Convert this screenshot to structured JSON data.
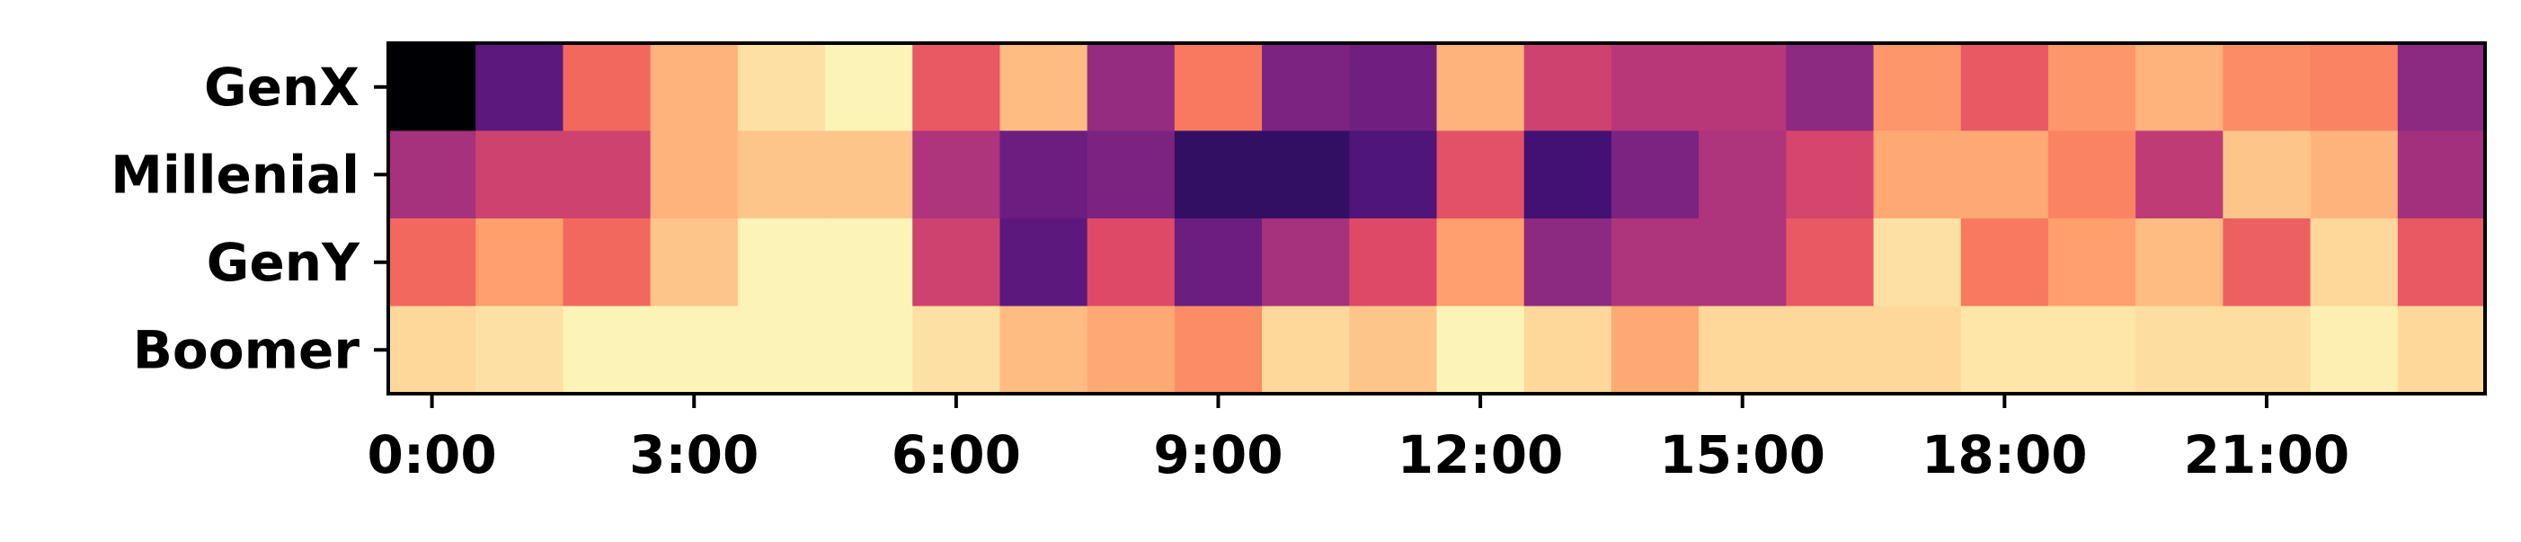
{
  "chart_data": {
    "type": "heatmap",
    "colormap": "magma",
    "title": "",
    "xlabel": "",
    "ylabel": "",
    "x_hours": [
      0,
      1,
      2,
      3,
      4,
      5,
      6,
      7,
      8,
      9,
      10,
      11,
      12,
      13,
      14,
      15,
      16,
      17,
      18,
      19,
      20,
      21,
      22,
      23
    ],
    "x_tick_labels": [
      "0:00",
      "3:00",
      "6:00",
      "9:00",
      "12:00",
      "15:00",
      "18:00",
      "21:00"
    ],
    "x_tick_hours": [
      0,
      3,
      6,
      9,
      12,
      15,
      18,
      21
    ],
    "rows": [
      {
        "name": "GenX",
        "values": [
          0.0,
          0.28,
          0.68,
          0.84,
          0.94,
          0.98,
          0.64,
          0.86,
          0.42,
          0.72,
          0.36,
          0.33,
          0.84,
          0.56,
          0.5,
          0.5,
          0.4,
          0.78,
          0.64,
          0.78,
          0.84,
          0.76,
          0.74,
          0.4
        ]
      },
      {
        "name": "Millenial",
        "values": [
          0.46,
          0.56,
          0.56,
          0.84,
          0.88,
          0.88,
          0.48,
          0.32,
          0.36,
          0.18,
          0.18,
          0.25,
          0.62,
          0.22,
          0.36,
          0.48,
          0.58,
          0.82,
          0.82,
          0.74,
          0.52,
          0.88,
          0.84,
          0.45
        ]
      },
      {
        "name": "GenY",
        "values": [
          0.68,
          0.8,
          0.68,
          0.88,
          0.98,
          0.98,
          0.56,
          0.28,
          0.6,
          0.32,
          0.46,
          0.6,
          0.8,
          0.4,
          0.48,
          0.48,
          0.64,
          0.94,
          0.72,
          0.8,
          0.86,
          0.66,
          0.92,
          0.64
        ]
      },
      {
        "name": "Boomer",
        "values": [
          0.92,
          0.94,
          0.98,
          0.98,
          0.98,
          0.98,
          0.94,
          0.86,
          0.82,
          0.76,
          0.92,
          0.88,
          0.98,
          0.92,
          0.82,
          0.92,
          0.92,
          0.92,
          0.95,
          0.95,
          0.93,
          0.93,
          0.97,
          0.92
        ]
      }
    ],
    "grid": false,
    "legend": "none",
    "colors": {
      "frame": "#000000",
      "tick": "#000000"
    }
  }
}
